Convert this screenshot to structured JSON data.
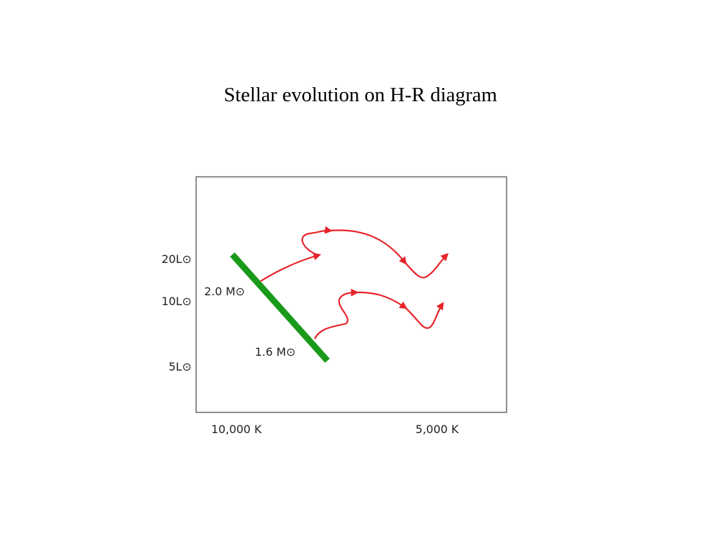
{
  "title": "Stellar evolution on H-R diagram",
  "diagram": {
    "y_labels": [
      "20L⊙",
      "10L⊙",
      "5L⊙"
    ],
    "x_labels": [
      "10,000 K",
      "5,000 K"
    ],
    "tracks": [
      "2.0 M⊙",
      "1.6 M⊙"
    ]
  }
}
